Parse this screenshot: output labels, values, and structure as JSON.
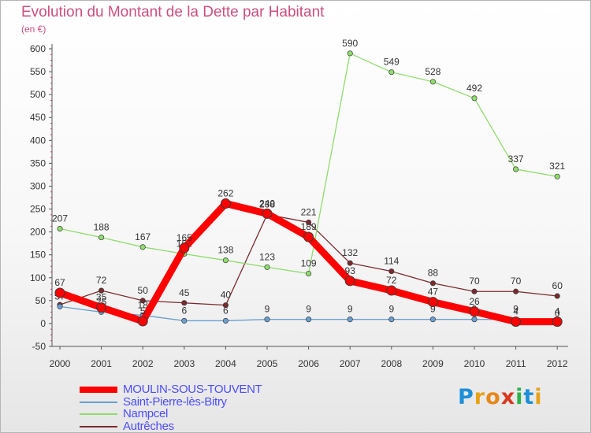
{
  "title": "Evolution du Montant de la Dette par Habitant",
  "subtitle": "(en €)",
  "logo": {
    "letters": [
      "P",
      "r",
      "o",
      "x",
      "i",
      "t",
      "i"
    ],
    "colors": [
      "#1e8fd6",
      "#e8a21a",
      "#e8861a",
      "#d6391e",
      "#2bb24c",
      "#1e8fd6",
      "#e8a21a"
    ]
  },
  "chart_data": {
    "type": "line",
    "title": "Evolution du Montant de la Dette par Habitant",
    "subtitle": "(en €)",
    "x": [
      "2000",
      "2001",
      "2002",
      "2003",
      "2004",
      "2005",
      "2006",
      "2007",
      "2008",
      "2009",
      "2010",
      "2011",
      "2012"
    ],
    "ylim": [
      -50,
      600
    ],
    "yticks": [
      -50,
      0,
      50,
      100,
      150,
      200,
      250,
      300,
      350,
      400,
      450,
      500,
      550,
      600
    ],
    "grid": false,
    "legend_position": "bottom-left",
    "series": [
      {
        "name": "MOULIN-SOUS-TOUVENT",
        "color": "#ff0000",
        "legend_color": "#4d4dff",
        "values": [
          67,
          35,
          5,
          165,
          262,
          240,
          189,
          93,
          72,
          47,
          26,
          4,
          4
        ],
        "labels": [
          "67",
          "35",
          "5",
          "165",
          "262",
          "240",
          "189",
          "93",
          "72",
          "47",
          "26",
          "4",
          "4"
        ]
      },
      {
        "name": "Saint-Pierre-lès-Bitry",
        "color": "#6a9fd0",
        "legend_color": "#4d4dff",
        "values": [
          37,
          25,
          18,
          6,
          6,
          9,
          9,
          9,
          9,
          9,
          9,
          9,
          0
        ],
        "labels": [
          "37",
          "25",
          "18",
          "6",
          "6",
          "9",
          "9",
          "9",
          "9",
          "9",
          "9",
          "9",
          "0"
        ]
      },
      {
        "name": "Nampcel",
        "color": "#8fdc6e",
        "legend_color": "#4d4dff",
        "values": [
          207,
          188,
          167,
          152,
          138,
          123,
          109,
          590,
          549,
          528,
          492,
          337,
          321
        ],
        "labels": [
          "207",
          "188",
          "167",
          "152",
          "138",
          "123",
          "109",
          "590",
          "549",
          "528",
          "492",
          "337",
          "321"
        ]
      },
      {
        "name": "Autrêches",
        "color": "#7a2a2f",
        "legend_color": "#4d4dff",
        "values": [
          41,
          72,
          50,
          45,
          40,
          238,
          221,
          132,
          114,
          88,
          70,
          70,
          60
        ],
        "labels": [
          "41",
          "72",
          "50",
          "45",
          "40",
          "238",
          "221",
          "132",
          "114",
          "88",
          "70",
          "70",
          "60"
        ]
      }
    ]
  }
}
